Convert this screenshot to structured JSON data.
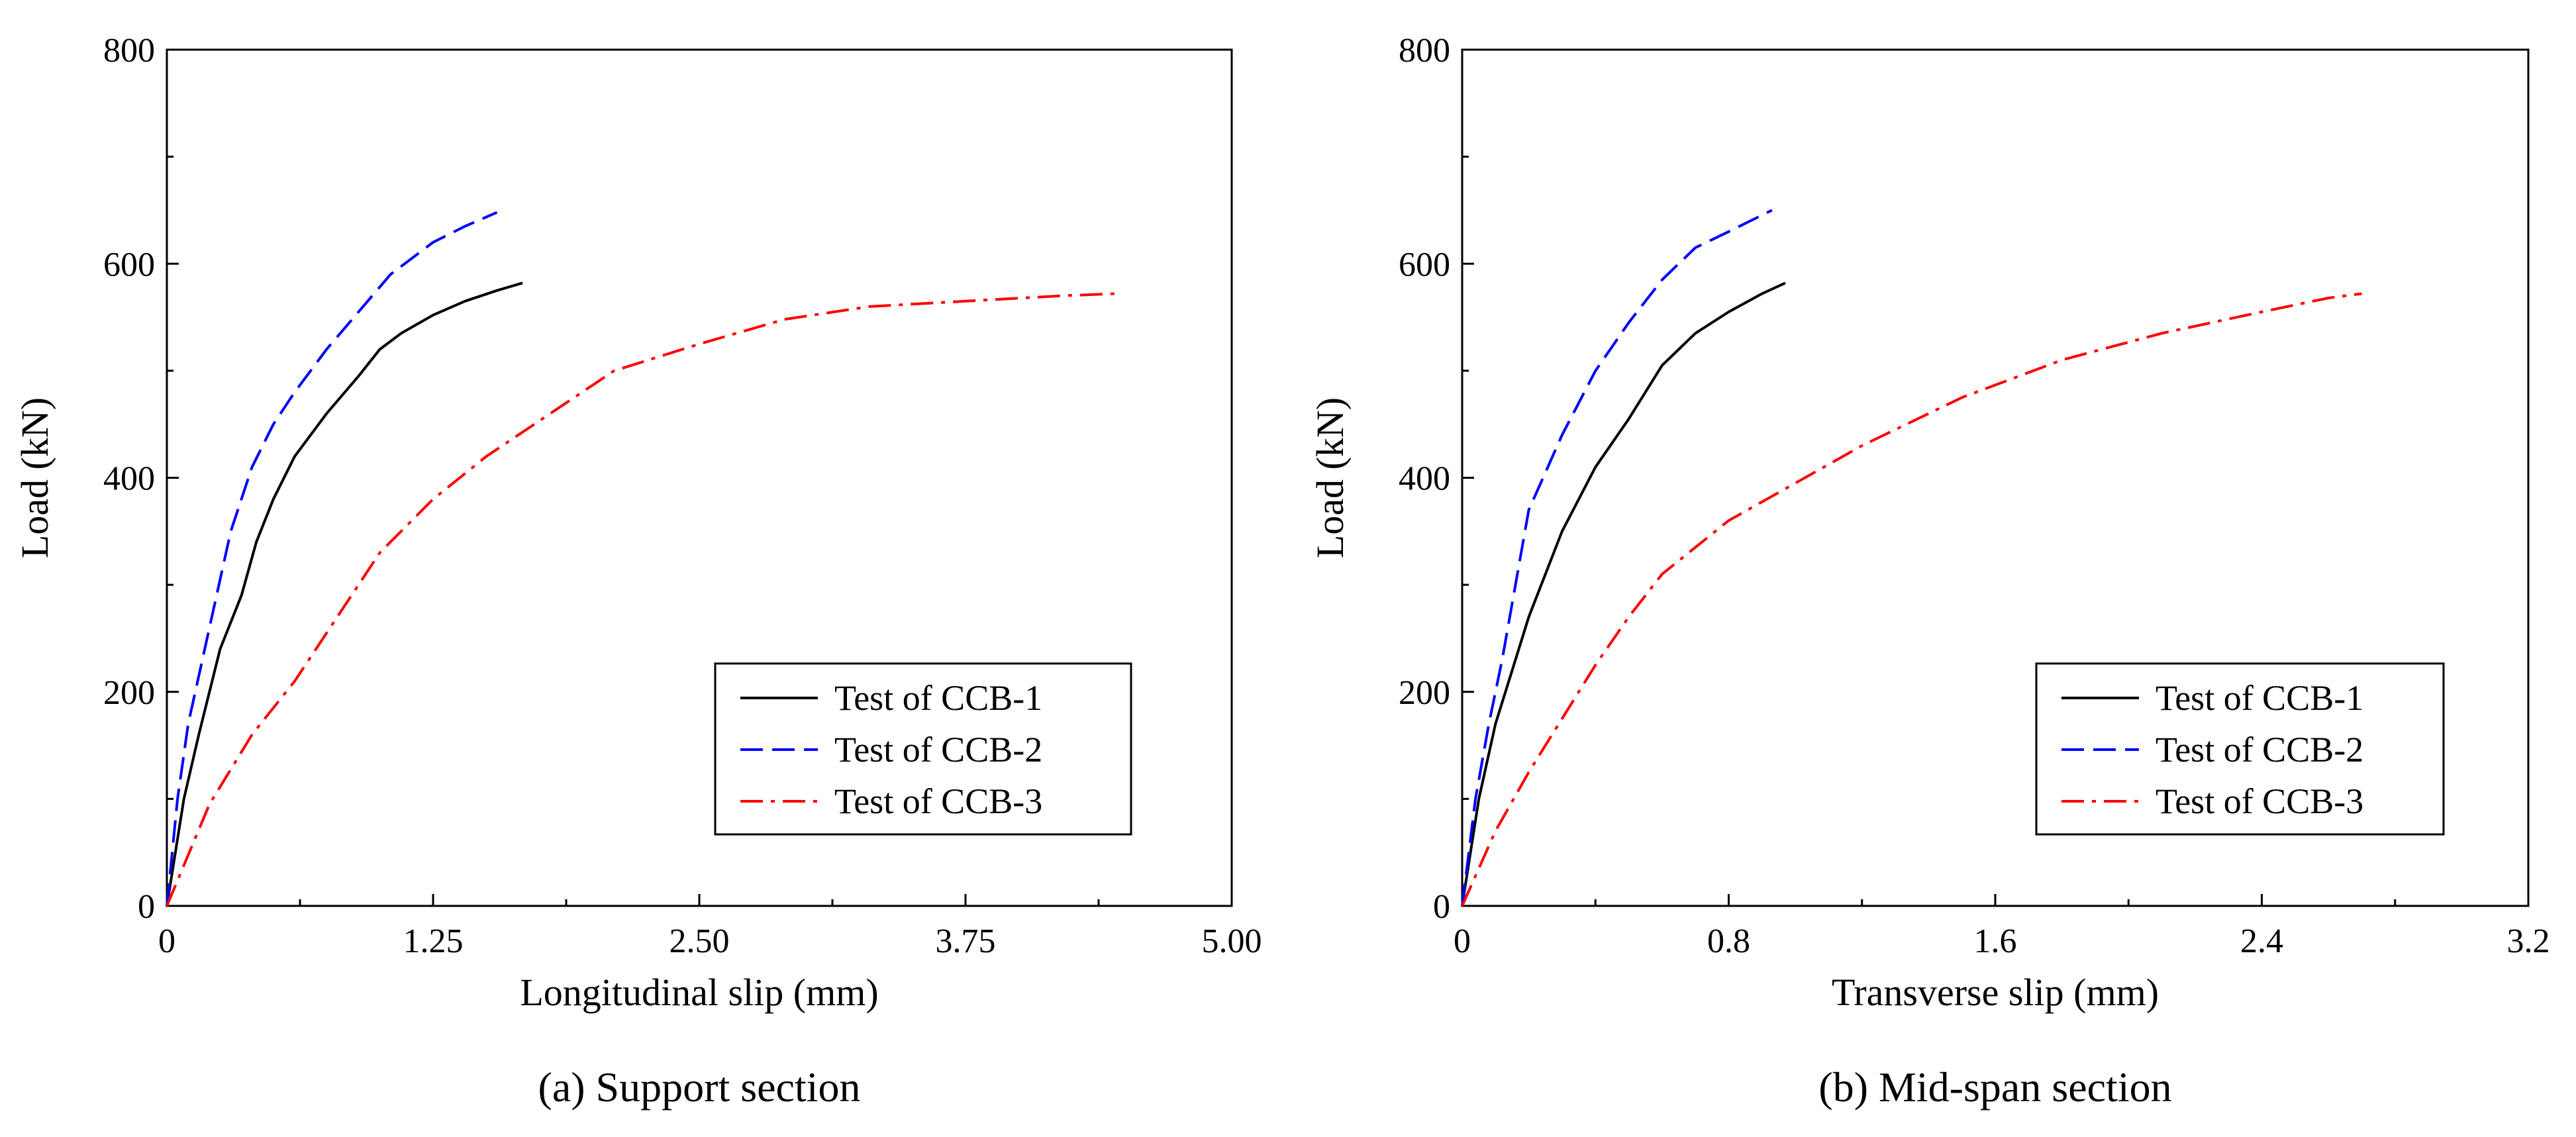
{
  "chart_data": [
    {
      "type": "line",
      "caption": "(a) Support section",
      "xlabel": "Longitudinal slip (mm)",
      "ylabel": "Load (kN)",
      "xlim": [
        0,
        5
      ],
      "ylim": [
        0,
        800
      ],
      "xticks": [
        0,
        1.25,
        2.5,
        3.75,
        5
      ],
      "xtick_labels": [
        "0",
        "1.25",
        "2.50",
        "3.75",
        "5.00"
      ],
      "yticks": [
        0,
        200,
        400,
        600,
        800
      ],
      "ytick_labels": [
        "0",
        "200",
        "400",
        "600",
        "800"
      ],
      "legend_position": "bottom-right",
      "grid": false,
      "series": [
        {
          "name": "Test of CCB-1",
          "color": "#000000",
          "style": "solid",
          "x": [
            0,
            0.08,
            0.15,
            0.25,
            0.35,
            0.42,
            0.5,
            0.6,
            0.75,
            0.9,
            1.0,
            1.1,
            1.25,
            1.4,
            1.55,
            1.67
          ],
          "y": [
            0,
            100,
            160,
            240,
            290,
            340,
            380,
            420,
            460,
            495,
            520,
            535,
            552,
            565,
            575,
            582
          ]
        },
        {
          "name": "Test of CCB-2",
          "color": "#0000ff",
          "style": "dashed",
          "x": [
            0,
            0.05,
            0.1,
            0.2,
            0.3,
            0.4,
            0.5,
            0.6,
            0.75,
            0.9,
            1.05,
            1.25,
            1.4,
            1.55
          ],
          "y": [
            0,
            100,
            170,
            260,
            350,
            410,
            450,
            480,
            520,
            555,
            590,
            620,
            635,
            648
          ]
        },
        {
          "name": "Test of CCB-3",
          "color": "#ff0000",
          "style": "dashdot",
          "x": [
            0,
            0.2,
            0.4,
            0.6,
            0.8,
            1.0,
            1.25,
            1.5,
            1.8,
            2.1,
            2.5,
            2.9,
            3.3,
            3.75,
            4.2,
            4.45
          ],
          "y": [
            0,
            95,
            160,
            210,
            270,
            330,
            380,
            420,
            460,
            500,
            525,
            548,
            560,
            565,
            570,
            572
          ]
        }
      ]
    },
    {
      "type": "line",
      "caption": "(b) Mid-span section",
      "xlabel": "Transverse slip (mm)",
      "ylabel": "Load (kN)",
      "xlim": [
        0,
        3.2
      ],
      "ylim": [
        0,
        800
      ],
      "xticks": [
        0,
        0.8,
        1.6,
        2.4,
        3.2
      ],
      "xtick_labels": [
        "0",
        "0.8",
        "1.6",
        "2.4",
        "3.2"
      ],
      "yticks": [
        0,
        200,
        400,
        600,
        800
      ],
      "ytick_labels": [
        "0",
        "200",
        "400",
        "600",
        "800"
      ],
      "legend_position": "bottom-right",
      "grid": false,
      "series": [
        {
          "name": "Test of CCB-1",
          "color": "#000000",
          "style": "solid",
          "x": [
            0,
            0.05,
            0.1,
            0.15,
            0.2,
            0.3,
            0.4,
            0.5,
            0.6,
            0.7,
            0.8,
            0.9,
            0.97
          ],
          "y": [
            0,
            100,
            170,
            220,
            270,
            350,
            410,
            455,
            505,
            535,
            555,
            572,
            582
          ]
        },
        {
          "name": "Test of CCB-2",
          "color": "#0000ff",
          "style": "dashed",
          "x": [
            0,
            0.04,
            0.08,
            0.12,
            0.16,
            0.2,
            0.3,
            0.4,
            0.5,
            0.6,
            0.7,
            0.8,
            0.93
          ],
          "y": [
            0,
            100,
            170,
            230,
            300,
            370,
            440,
            500,
            545,
            585,
            615,
            630,
            650
          ]
        },
        {
          "name": "Test of CCB-3",
          "color": "#ff0000",
          "style": "dashdot",
          "x": [
            0,
            0.1,
            0.2,
            0.3,
            0.4,
            0.5,
            0.6,
            0.8,
            1.0,
            1.2,
            1.5,
            1.8,
            2.1,
            2.4,
            2.6,
            2.7
          ],
          "y": [
            0,
            70,
            125,
            175,
            225,
            270,
            310,
            360,
            395,
            430,
            475,
            510,
            535,
            555,
            568,
            572
          ]
        }
      ]
    }
  ]
}
